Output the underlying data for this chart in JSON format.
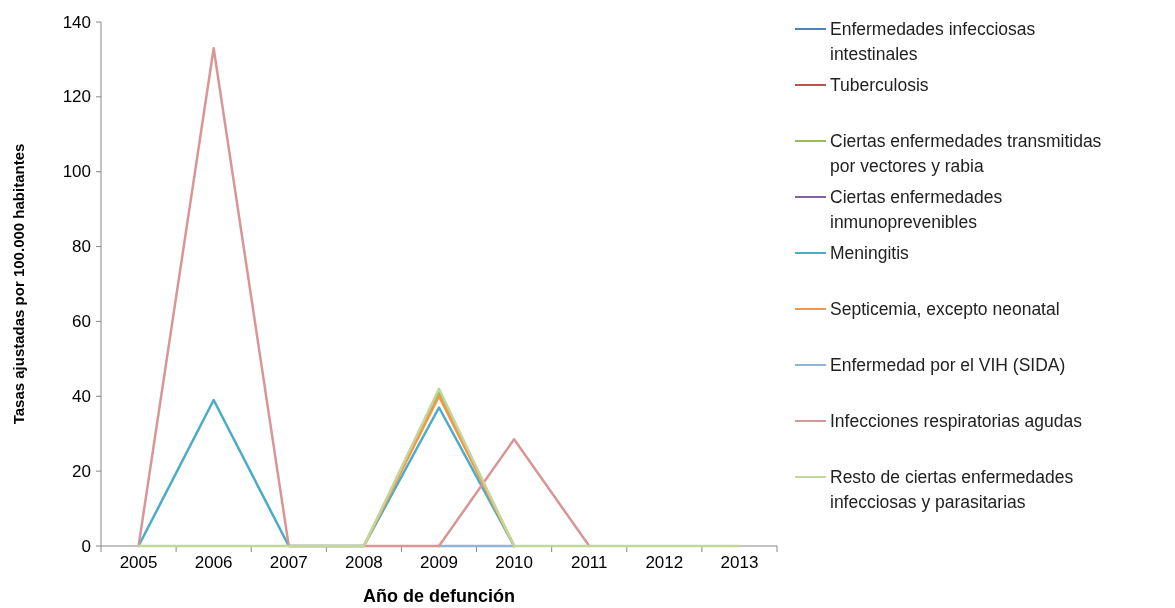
{
  "chart_data": {
    "type": "line",
    "xlabel": "Año de defunción",
    "ylabel": "Tasas ajustadas por 100.000 habitantes",
    "categories": [
      "2005",
      "2006",
      "2007",
      "2008",
      "2009",
      "2010",
      "2011",
      "2012",
      "2013"
    ],
    "ylim": [
      0,
      140
    ],
    "yticks": [
      0,
      20,
      40,
      60,
      80,
      100,
      120,
      140
    ],
    "grid": false,
    "legend": "right",
    "marker": "none",
    "line_style": "solid",
    "series": [
      {
        "name": "Enfermedades infecciosas intestinales",
        "color": "#4f81bd",
        "values": [
          null,
          null,
          null,
          null,
          null,
          null,
          null,
          null,
          null
        ]
      },
      {
        "name": "Tuberculosis",
        "color": "#c0504d",
        "values": [
          null,
          null,
          null,
          null,
          null,
          null,
          null,
          null,
          null
        ]
      },
      {
        "name": "Ciertas enfermedades transmitidas por vectores y rabia",
        "color": "#9bbb59",
        "values": [
          null,
          null,
          null,
          0,
          41,
          0,
          null,
          null,
          null
        ]
      },
      {
        "name": "Ciertas enfermedades inmunoprevenibles",
        "color": "#8064a2",
        "values": [
          null,
          null,
          null,
          null,
          null,
          null,
          null,
          null,
          null
        ]
      },
      {
        "name": "Meningitis",
        "color": "#4bacc6",
        "values": [
          0,
          39,
          0,
          0,
          37,
          0,
          null,
          null,
          null
        ]
      },
      {
        "name": "Septicemia, excepto neonatal",
        "color": "#f79646",
        "values": [
          null,
          null,
          null,
          0,
          40,
          0,
          null,
          null,
          null
        ]
      },
      {
        "name": "Enfermedad por el VIH (SIDA)",
        "color": "#95b3d7",
        "values": [
          null,
          null,
          null,
          null,
          0,
          0,
          null,
          null,
          null
        ]
      },
      {
        "name": "Infecciones respiratorias agudas",
        "color": "#d99694",
        "values": [
          0,
          133,
          0,
          0,
          0,
          28.5,
          0,
          null,
          null
        ]
      },
      {
        "name": "Resto de ciertas enfermedades infecciosas y parasitarias",
        "color": "#c3d69b",
        "values": [
          0,
          0,
          0,
          0,
          42,
          0,
          0,
          0,
          0
        ]
      }
    ]
  }
}
